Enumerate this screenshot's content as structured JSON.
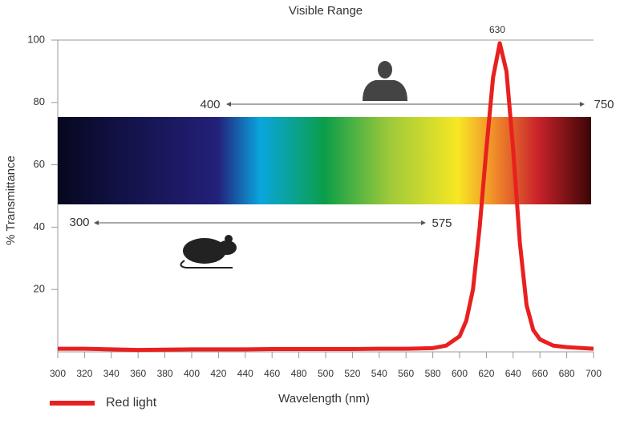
{
  "chart_data": {
    "type": "line",
    "title": "Visible Range",
    "x_label": "Wavelength (nm)",
    "y_label": "% Transmittance",
    "x": [
      300,
      320,
      340,
      360,
      380,
      400,
      420,
      440,
      460,
      480,
      500,
      520,
      540,
      560,
      580,
      590,
      600,
      605,
      610,
      615,
      620,
      625,
      630,
      635,
      640,
      645,
      650,
      655,
      660,
      670,
      680,
      700
    ],
    "series": [
      {
        "name": "Red light",
        "color": "#e8201f",
        "values": [
          1,
          1,
          0.8,
          0.6,
          0.7,
          0.8,
          0.8,
          0.8,
          0.9,
          0.9,
          0.9,
          0.9,
          1,
          1,
          1.2,
          2,
          5,
          10,
          20,
          40,
          65,
          88,
          99,
          90,
          65,
          35,
          15,
          7,
          4,
          2,
          1.5,
          1
        ]
      }
    ],
    "xlim": [
      300,
      700
    ],
    "xticks": [
      300,
      320,
      340,
      360,
      380,
      400,
      420,
      440,
      460,
      480,
      500,
      520,
      540,
      560,
      580,
      600,
      620,
      640,
      660,
      680,
      700
    ],
    "ylim": [
      0,
      100
    ],
    "yticks": [
      20,
      40,
      60,
      80,
      100
    ],
    "grid": false,
    "legend": "bottom-left",
    "annotations": {
      "peak": "630",
      "human_start": "400",
      "human_end": "750",
      "mouse_start": "300",
      "mouse_end": "575"
    }
  }
}
